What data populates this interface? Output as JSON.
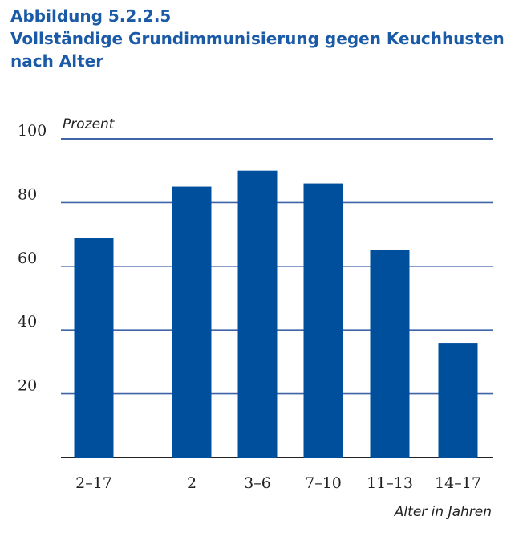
{
  "figure": {
    "number": "Abbildung 5.2.2.5",
    "title_line1": "Vollständige Grundimmunisierung gegen Keuchhusten",
    "title_line2": "nach Alter"
  },
  "chart_data": {
    "type": "bar",
    "title": "Vollständige Grundimmunisierung gegen Keuchhusten nach Alter",
    "ylabel": "Prozent",
    "xlabel": "Alter in Jahren",
    "ylim": [
      0,
      100
    ],
    "yticks": [
      20,
      40,
      60,
      80,
      100
    ],
    "categories": [
      "2–17",
      "2",
      "3–6",
      "7–10",
      "11–13",
      "14–17"
    ],
    "values": [
      69,
      85,
      90,
      86,
      65,
      36
    ],
    "grid": true,
    "colors": {
      "bar": "#004f9c",
      "grid": "#3f64a8",
      "axis": "#222222"
    }
  }
}
